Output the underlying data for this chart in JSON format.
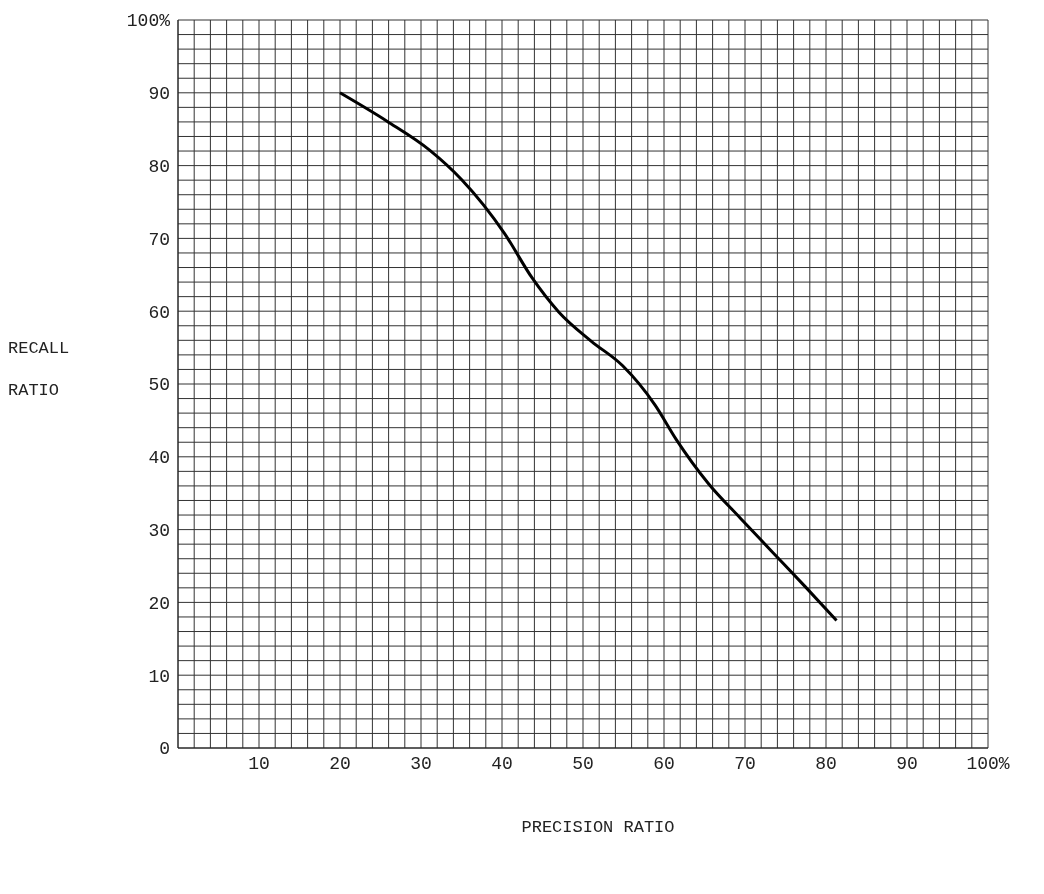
{
  "chart_data": {
    "type": "line",
    "xlabel": "PRECISION RATIO",
    "ylabel": "RECALL RATIO",
    "x": [
      20,
      25.8,
      31.1,
      35,
      40.3,
      43.7,
      47,
      51,
      54.9,
      58.9,
      61.5,
      65.5,
      69.4,
      73.4,
      77.4,
      81.3
    ],
    "series": [
      {
        "color": "#000000",
        "values": [
          90,
          86.1,
          82.1,
          78.1,
          70.7,
          64.6,
          59.9,
          55.9,
          52.5,
          47.1,
          42.4,
          36.3,
          31.6,
          26.9,
          22.2,
          17.5
        ]
      }
    ],
    "xlim": [
      0,
      100
    ],
    "ylim": [
      0,
      100
    ],
    "xticks": [
      {
        "value": 0,
        "label": null
      },
      {
        "value": 2,
        "label": null
      },
      {
        "value": 4,
        "label": null
      },
      {
        "value": 6,
        "label": null
      },
      {
        "value": 8,
        "label": null
      },
      10,
      {
        "value": 12,
        "label": null
      },
      {
        "value": 14,
        "label": null
      },
      {
        "value": 16,
        "label": null
      },
      {
        "value": 18,
        "label": null
      },
      20,
      {
        "value": 22,
        "label": null
      },
      {
        "value": 24,
        "label": null
      },
      {
        "value": 26,
        "label": null
      },
      {
        "value": 28,
        "label": null
      },
      30,
      {
        "value": 32,
        "label": null
      },
      {
        "value": 34,
        "label": null
      },
      {
        "value": 36,
        "label": null
      },
      {
        "value": 38,
        "label": null
      },
      40,
      {
        "value": 42,
        "label": null
      },
      {
        "value": 44,
        "label": null
      },
      {
        "value": 46,
        "label": null
      },
      {
        "value": 48,
        "label": null
      },
      50,
      {
        "value": 52,
        "label": null
      },
      {
        "value": 54,
        "label": null
      },
      {
        "value": 56,
        "label": null
      },
      {
        "value": 58,
        "label": null
      },
      60,
      {
        "value": 62,
        "label": null
      },
      {
        "value": 64,
        "label": null
      },
      {
        "value": 66,
        "label": null
      },
      {
        "value": 68,
        "label": null
      },
      70,
      {
        "value": 72,
        "label": null
      },
      {
        "value": 74,
        "label": null
      },
      {
        "value": 76,
        "label": null
      },
      {
        "value": 78,
        "label": null
      },
      80,
      {
        "value": 82,
        "label": null
      },
      {
        "value": 84,
        "label": null
      },
      {
        "value": 86,
        "label": null
      },
      {
        "value": 88,
        "label": null
      },
      90,
      {
        "value": 92,
        "label": null
      },
      {
        "value": 94,
        "label": null
      },
      {
        "value": 96,
        "label": null
      },
      {
        "value": 98,
        "label": null
      },
      {
        "value": 100,
        "label": "100%"
      }
    ],
    "yticks": [
      0,
      {
        "value": 2,
        "label": null
      },
      {
        "value": 4,
        "label": null
      },
      {
        "value": 6,
        "label": null
      },
      {
        "value": 8,
        "label": null
      },
      10,
      {
        "value": 12,
        "label": null
      },
      {
        "value": 14,
        "label": null
      },
      {
        "value": 16,
        "label": null
      },
      {
        "value": 18,
        "label": null
      },
      20,
      {
        "value": 22,
        "label": null
      },
      {
        "value": 24,
        "label": null
      },
      {
        "value": 26,
        "label": null
      },
      {
        "value": 28,
        "label": null
      },
      30,
      {
        "value": 32,
        "label": null
      },
      {
        "value": 34,
        "label": null
      },
      {
        "value": 36,
        "label": null
      },
      {
        "value": 38,
        "label": null
      },
      40,
      {
        "value": 42,
        "label": null
      },
      {
        "value": 44,
        "label": null
      },
      {
        "value": 46,
        "label": null
      },
      {
        "value": 48,
        "label": null
      },
      50,
      {
        "value": 52,
        "label": null
      },
      {
        "value": 54,
        "label": null
      },
      {
        "value": 56,
        "label": null
      },
      {
        "value": 58,
        "label": null
      },
      60,
      {
        "value": 62,
        "label": null
      },
      {
        "value": 64,
        "label": null
      },
      {
        "value": 66,
        "label": null
      },
      {
        "value": 68,
        "label": null
      },
      70,
      {
        "value": 72,
        "label": null
      },
      {
        "value": 74,
        "label": null
      },
      {
        "value": 76,
        "label": null
      },
      {
        "value": 78,
        "label": null
      },
      80,
      {
        "value": 82,
        "label": null
      },
      {
        "value": 84,
        "label": null
      },
      {
        "value": 86,
        "label": null
      },
      {
        "value": 88,
        "label": null
      },
      90,
      {
        "value": 92,
        "label": null
      },
      {
        "value": 94,
        "label": null
      },
      {
        "value": 96,
        "label": null
      },
      {
        "value": 98,
        "label": null
      },
      {
        "value": 100,
        "label": "100%"
      }
    ],
    "grid": true
  }
}
